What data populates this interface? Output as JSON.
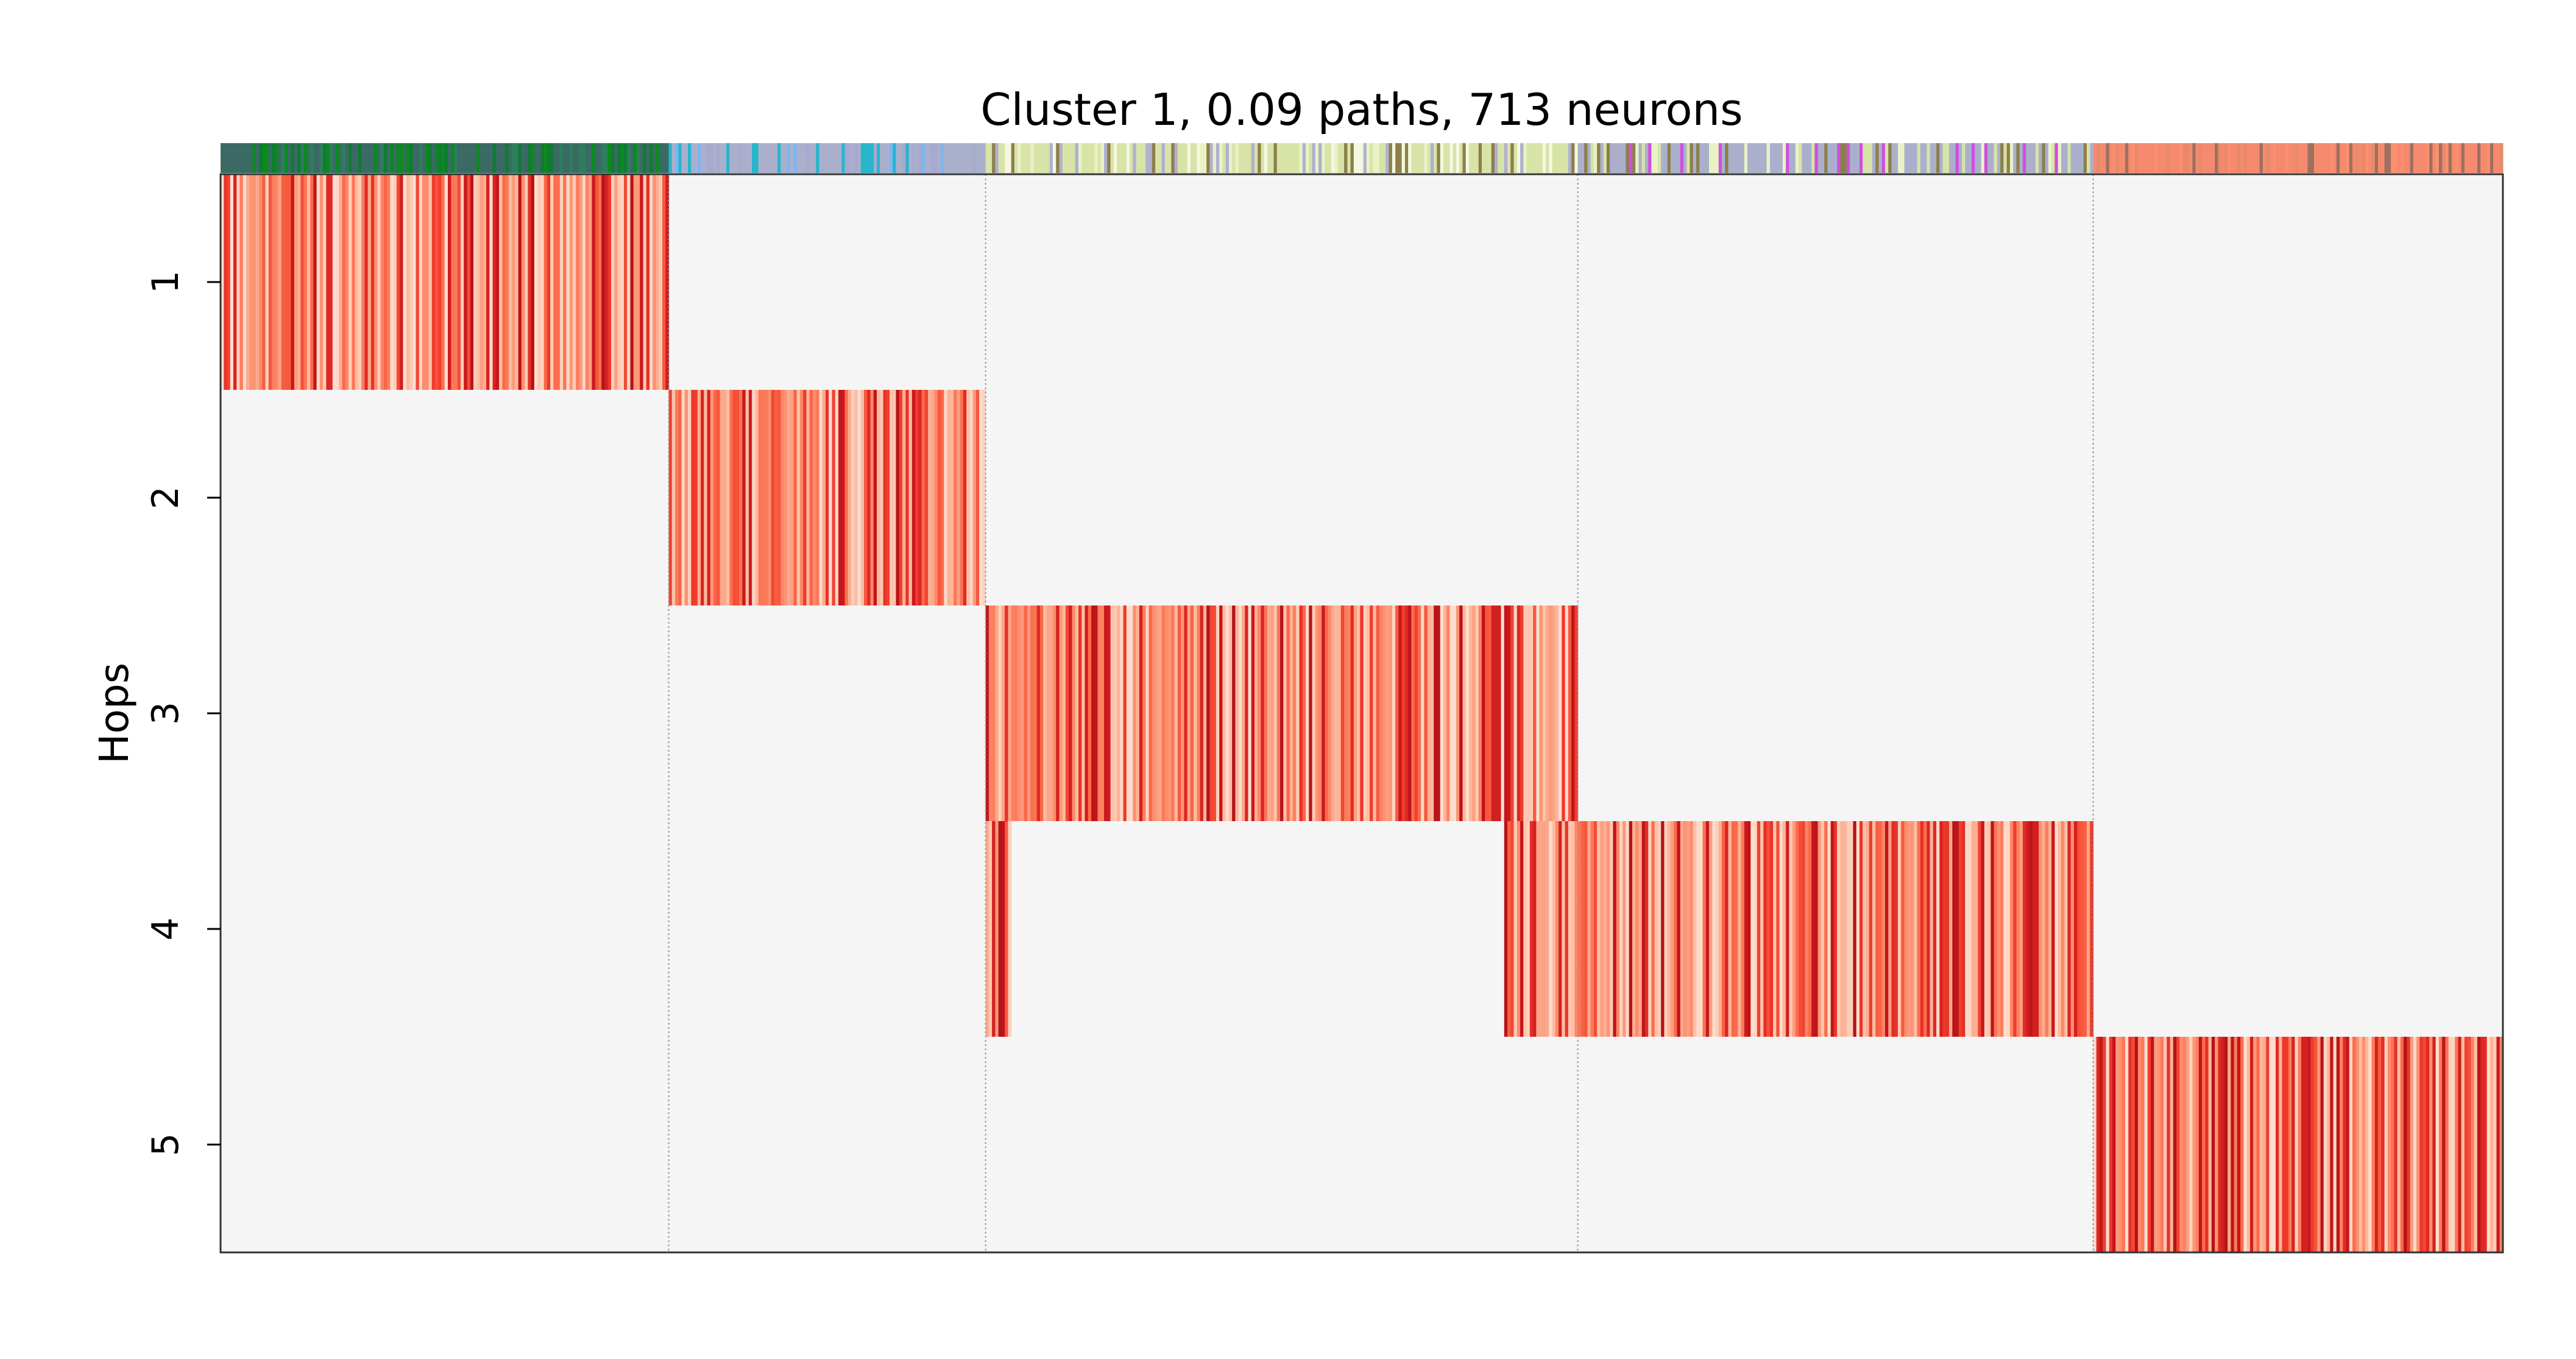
{
  "chart_data": {
    "type": "heatmap",
    "title": "Cluster 1, 0.09 paths, 713 neurons",
    "ylabel": "Hops",
    "xlabel": "",
    "y_categories": [
      "1",
      "2",
      "3",
      "4",
      "5"
    ],
    "x_axis": {
      "range": [
        0,
        713
      ],
      "tick_labels": []
    },
    "grid": false,
    "colormap": "Reds",
    "background_color": "#f5f5f5",
    "group_boundaries": [
      140,
      239,
      424,
      585
    ],
    "blocks": [
      {
        "hop": 1,
        "neuron_range": [
          0,
          140
        ]
      },
      {
        "hop": 2,
        "neuron_range": [
          140,
          239
        ]
      },
      {
        "hop": 3,
        "neuron_range": [
          239,
          424
        ]
      },
      {
        "hop": 4,
        "neuron_range": [
          239,
          247
        ]
      },
      {
        "hop": 4,
        "neuron_range": [
          401,
          585
        ]
      },
      {
        "hop": 5,
        "neuron_range": [
          585,
          713
        ]
      }
    ],
    "top_color_bar": {
      "segments": [
        {
          "neuron_range": [
            0,
            140
          ],
          "colors": [
            "#3b6a65",
            "#0a8a1f",
            "#2e7d5e",
            "#117a33"
          ]
        },
        {
          "neuron_range": [
            140,
            239
          ],
          "colors": [
            "#aab0cc",
            "#7db6f2",
            "#27b6cc",
            "#a8a8d0"
          ]
        },
        {
          "neuron_range": [
            239,
            424
          ],
          "colors": [
            "#d8e3a8",
            "#e9f2c5",
            "#8c7f4a",
            "#b0b0cf",
            "#f4f8e0"
          ]
        },
        {
          "neuron_range": [
            424,
            585
          ],
          "colors": [
            "#aab0cc",
            "#d8e3a8",
            "#d04fe0",
            "#8c7f4a",
            "#e9f2c5"
          ]
        },
        {
          "neuron_range": [
            585,
            713
          ],
          "colors": [
            "#f58a6e",
            "#9e7060",
            "#e88a6a",
            "#fb8f70"
          ]
        }
      ]
    }
  }
}
